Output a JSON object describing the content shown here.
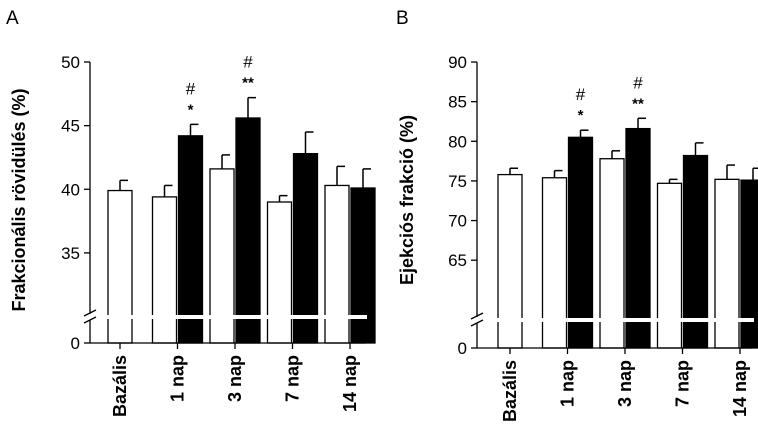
{
  "chart_data": [
    {
      "type": "bar",
      "panel": "A",
      "ylabel": "Frakcionális rövidülés (%)",
      "categories": [
        "Bazális",
        "1 nap",
        "3 nap",
        "7 nap",
        "14 nap"
      ],
      "series": [
        {
          "color": "#ffffff",
          "values": [
            39.9,
            39.4,
            41.6,
            39.0,
            40.3
          ],
          "errors": [
            0.8,
            0.9,
            1.1,
            0.5,
            1.5
          ]
        },
        {
          "color": "#000000",
          "values": [
            null,
            44.2,
            45.6,
            42.8,
            40.1
          ],
          "errors": [
            null,
            0.9,
            1.6,
            1.7,
            1.5
          ]
        }
      ],
      "ylim": [
        33.5,
        50
      ],
      "yticks": [
        35,
        40,
        45,
        50
      ],
      "broken_axis_zero": "0",
      "annotations": [
        {
          "category": "1 nap",
          "hash": "#",
          "stars": "*"
        },
        {
          "category": "3 nap",
          "hash": "#",
          "stars": "**"
        }
      ],
      "grid": false,
      "legend": "none"
    },
    {
      "type": "bar",
      "panel": "B",
      "ylabel": "Ejekciós frakció (%)",
      "categories": [
        "Bazális",
        "1 nap",
        "3 nap",
        "7 nap",
        "14 nap"
      ],
      "series": [
        {
          "color": "#ffffff",
          "values": [
            75.8,
            75.4,
            77.8,
            74.7,
            75.2
          ],
          "errors": [
            0.8,
            0.9,
            1.0,
            0.5,
            1.8
          ]
        },
        {
          "color": "#000000",
          "values": [
            null,
            80.5,
            81.6,
            78.2,
            75.1
          ],
          "errors": [
            null,
            0.9,
            1.3,
            1.6,
            1.5
          ]
        }
      ],
      "ylim": [
        62,
        90
      ],
      "yticks": [
        65,
        70,
        75,
        80,
        85,
        90
      ],
      "broken_axis_zero": "0",
      "annotations": [
        {
          "category": "1 nap",
          "hash": "#",
          "stars": "*"
        },
        {
          "category": "3 nap",
          "hash": "#",
          "stars": "**"
        }
      ],
      "grid": false,
      "legend": "none"
    }
  ]
}
